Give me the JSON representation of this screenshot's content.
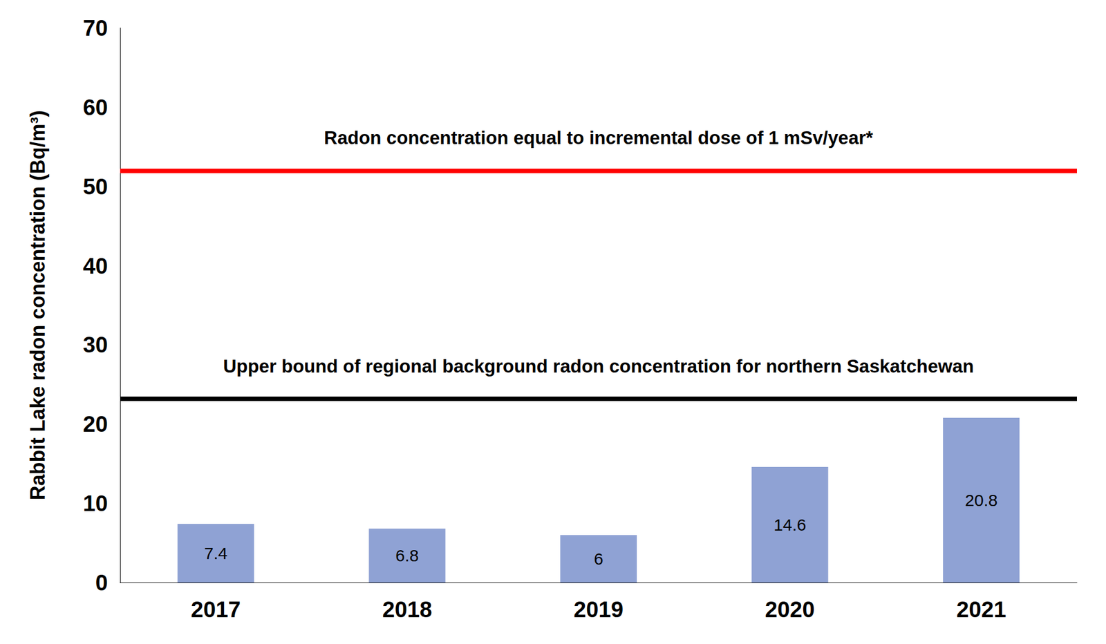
{
  "chart_data": {
    "type": "bar",
    "y_label": "Rabbit Lake radon concentration (Bq/m³)",
    "categories": [
      "2017",
      "2018",
      "2019",
      "2020",
      "2021"
    ],
    "values": [
      7.4,
      6.8,
      6,
      14.6,
      20.8
    ],
    "color": "#8fa2d4",
    "ylim": [
      0,
      70
    ],
    "yticks": [
      0,
      10,
      20,
      30,
      40,
      50,
      60,
      70
    ],
    "grid": false,
    "data_labels": true,
    "annotations": [
      {
        "label": "Radon concentration equal to incremental dose of 1 mSv/year*",
        "value": 52,
        "color": "#ff0000"
      },
      {
        "label": "Upper bound of regional background radon concentration for northern Saskatchewan",
        "value": 23.2,
        "color": "#000000"
      }
    ]
  }
}
